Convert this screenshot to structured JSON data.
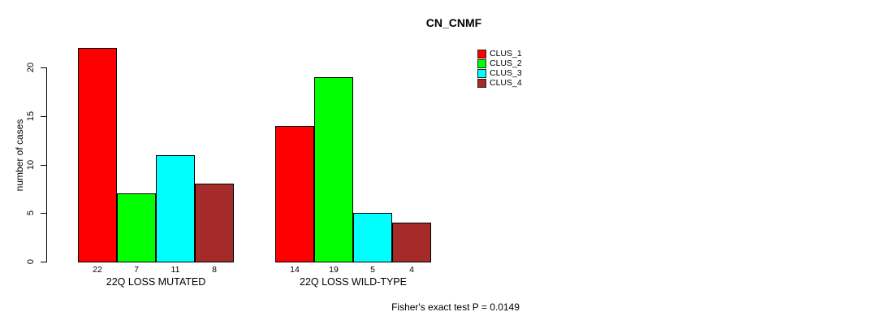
{
  "chart_data": {
    "type": "bar",
    "title": "CN_CNMF",
    "ylabel": "number of cases",
    "ylim": [
      0,
      22
    ],
    "yticks": [
      0,
      5,
      10,
      15,
      20
    ],
    "categories": [
      "22Q LOSS MUTATED",
      "22Q LOSS WILD-TYPE"
    ],
    "series": [
      {
        "name": "CLUS_1",
        "color": "#FF0000",
        "values": [
          22,
          14
        ]
      },
      {
        "name": "CLUS_2",
        "color": "#00FF00",
        "values": [
          7,
          19
        ]
      },
      {
        "name": "CLUS_3",
        "color": "#00FFFF",
        "values": [
          11,
          5
        ]
      },
      {
        "name": "CLUS_4",
        "color": "#A52A2A",
        "values": [
          8,
          4
        ]
      }
    ],
    "bar_value_labels": [
      [
        "22",
        "7",
        "11",
        "8"
      ],
      [
        "14",
        "19",
        "5",
        "4"
      ]
    ],
    "annotation": "Fisher's exact test P = 0.0149",
    "legend_position": "top-right",
    "grid": false
  }
}
